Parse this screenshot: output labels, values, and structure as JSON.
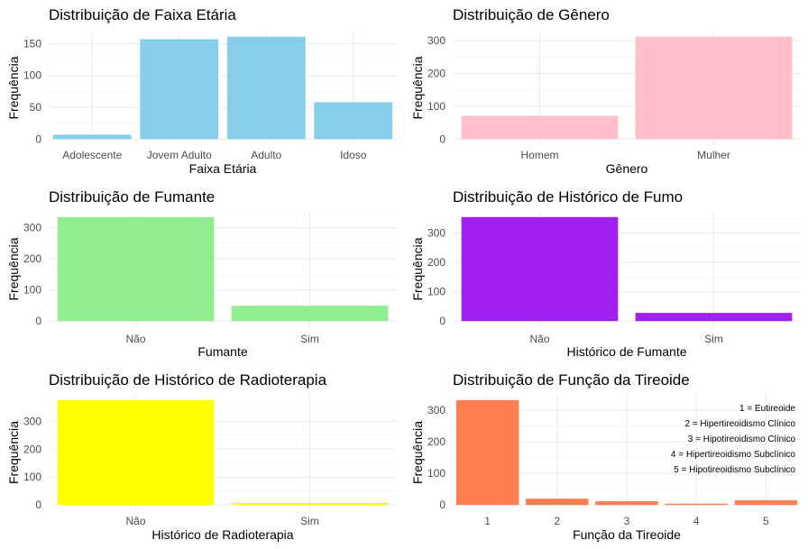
{
  "chart_data": [
    {
      "type": "bar",
      "title": "Distribuição de Faixa Etária",
      "xlabel": "Faixa Etária",
      "ylabel": "Frequência",
      "categories": [
        "Adolescente",
        "Jovem Adulto",
        "Adulto",
        "Idoso"
      ],
      "values": [
        7,
        157,
        161,
        58
      ],
      "ylim": [
        0,
        161
      ],
      "yticks": [
        0,
        50,
        100,
        150
      ],
      "color": "#87CEEB",
      "grid": true
    },
    {
      "type": "bar",
      "title": "Distribuição de Gênero",
      "xlabel": "Gênero",
      "ylabel": "Frequência",
      "categories": [
        "Homem",
        "Mulher"
      ],
      "values": [
        71,
        312
      ],
      "ylim": [
        0,
        312
      ],
      "yticks": [
        0,
        100,
        200,
        300
      ],
      "color": "#FFC0CB",
      "grid": true
    },
    {
      "type": "bar",
      "title": "Distribuição de Fumante",
      "xlabel": "Fumante",
      "ylabel": "Frequência",
      "categories": [
        "Não",
        "Sim"
      ],
      "values": [
        334,
        49
      ],
      "ylim": [
        0,
        334
      ],
      "yticks": [
        0,
        100,
        200,
        300
      ],
      "color": "#90EE90",
      "grid": true
    },
    {
      "type": "bar",
      "title": "Distribuição de Histórico de Fumo",
      "xlabel": "Histórico de Fumante",
      "ylabel": "Frequência",
      "categories": [
        "Não",
        "Sim"
      ],
      "values": [
        355,
        28
      ],
      "ylim": [
        0,
        355
      ],
      "yticks": [
        0,
        100,
        200,
        300
      ],
      "color": "#A020F0",
      "grid": true
    },
    {
      "type": "bar",
      "title": "Distribuição de Histórico de Radioterapia",
      "xlabel": "Histórico de Radioterapia",
      "ylabel": "Frequência",
      "categories": [
        "Não",
        "Sim"
      ],
      "values": [
        376,
        7
      ],
      "ylim": [
        0,
        376
      ],
      "yticks": [
        0,
        100,
        200,
        300
      ],
      "color": "#FFFF00",
      "grid": true
    },
    {
      "type": "bar",
      "title": "Distribuição de Função da Tireoide",
      "xlabel": "Função da Tireoide",
      "ylabel": "Frequência",
      "categories": [
        "1",
        "2",
        "3",
        "4",
        "5"
      ],
      "values": [
        332,
        20,
        12,
        4,
        15
      ],
      "ylim": [
        0,
        332
      ],
      "yticks": [
        0,
        100,
        200,
        300
      ],
      "color": "#FF7F50",
      "grid": true,
      "annotations": [
        "1 = Eutireoide",
        "2 = Hipertireoidismo Clínico",
        "3 = Hipotireoidismo Clínico",
        "4 = Hipertireoidismo Subclínico",
        "5 = Hipotireoidismo Subclínico"
      ]
    }
  ]
}
